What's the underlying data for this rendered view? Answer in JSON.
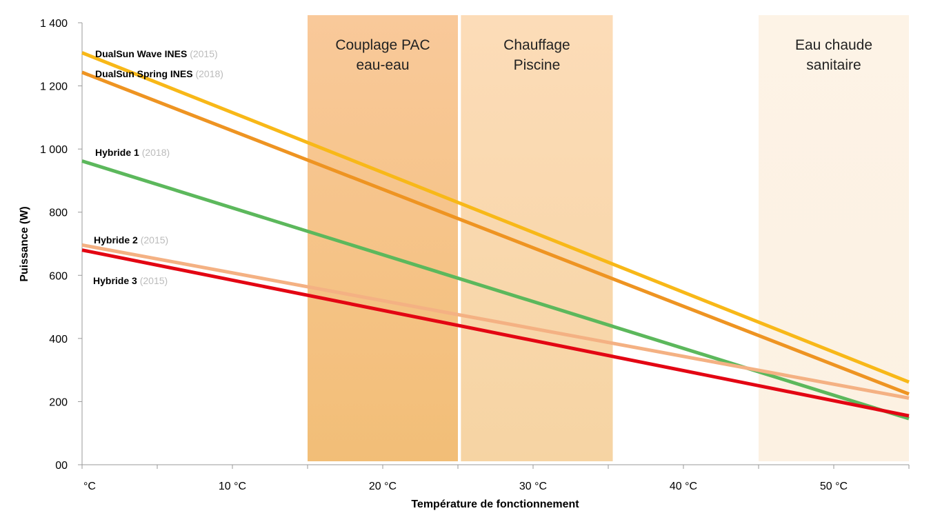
{
  "chart_data": {
    "type": "line",
    "title": "",
    "xlabel": "Température de fonctionnement",
    "ylabel": "Puissance (W)",
    "xlim": [
      0,
      55
    ],
    "ylim": [
      0,
      1400
    ],
    "grid": false,
    "x_ticks": [
      0,
      10,
      20,
      30,
      40,
      50
    ],
    "x_tick_labels": [
      "°C",
      "10 °C",
      "20 °C",
      "30 °C",
      "40 °C",
      "50 °C"
    ],
    "y_ticks": [
      0,
      200,
      400,
      600,
      800,
      1000,
      1200,
      1400
    ],
    "y_tick_labels": [
      "00",
      "200",
      "400",
      "600",
      "800",
      "1 000",
      "1 200",
      "1 400"
    ],
    "bands": [
      {
        "label": [
          "Couplage PAC",
          "eau-eau"
        ],
        "x": [
          15,
          25
        ],
        "colors": [
          "#f9c99a",
          "#f2be77"
        ]
      },
      {
        "label": [
          "Chauffage",
          "Piscine"
        ],
        "x": [
          25.2,
          35.3
        ],
        "colors": [
          "#fcdcb8",
          "#f6d4a3"
        ]
      },
      {
        "label": [
          "Eau chaude",
          "sanitaire"
        ],
        "x": [
          45,
          55
        ],
        "colors": [
          "#fdf3e6",
          "#fcf1e2"
        ]
      }
    ],
    "series": [
      {
        "name": "DualSun Wave INES",
        "year": "(2015)",
        "color": "#f8b818",
        "x": [
          0,
          55
        ],
        "y": [
          1305,
          262
        ]
      },
      {
        "name": "DualSun Spring INES",
        "year": "(2018)",
        "color": "#ee9422",
        "x": [
          0,
          55
        ],
        "y": [
          1243,
          224
        ]
      },
      {
        "name": "Hybride 1",
        "year": "(2018)",
        "color": "#5cb85c",
        "x": [
          0,
          55
        ],
        "y": [
          962,
          146
        ]
      },
      {
        "name": "Hybride 2",
        "year": "(2015)",
        "color": "#f4b183",
        "x": [
          0,
          55
        ],
        "y": [
          696,
          211
        ]
      },
      {
        "name": "Hybride 3",
        "year": "(2015)",
        "color": "#e30613",
        "x": [
          0,
          55
        ],
        "y": [
          680,
          155
        ]
      }
    ]
  }
}
